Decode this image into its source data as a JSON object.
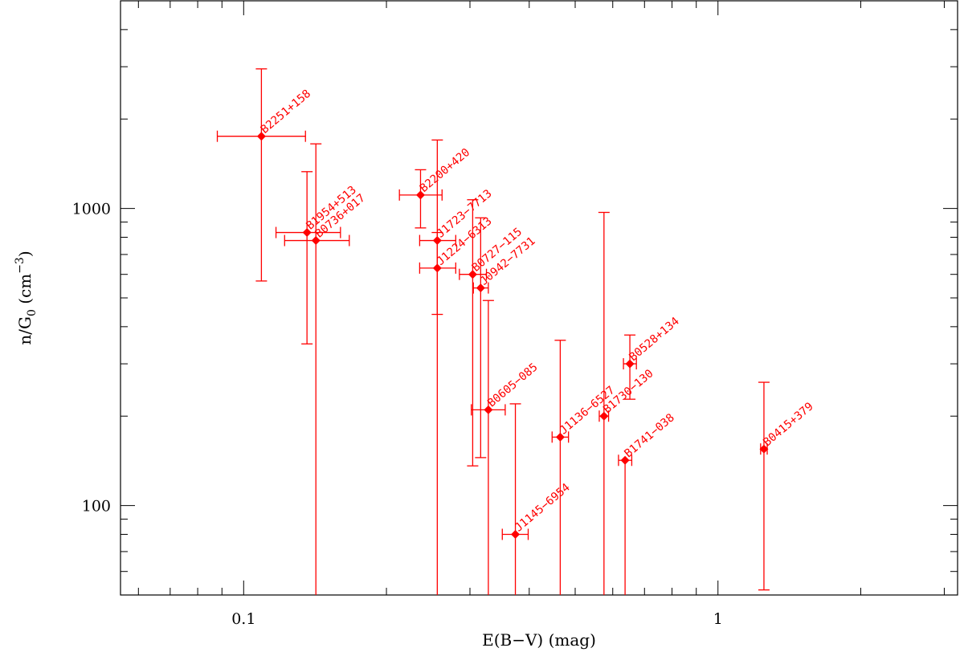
{
  "chart_data": {
    "type": "scatter",
    "xlabel": "E(B−V) (mag)",
    "ylabel_main": "n/G",
    "ylabel_sub": "0",
    "ylabel_unit_open": " (cm",
    "ylabel_unit_sup": "−3",
    "ylabel_unit_close": ")",
    "x_scale": "log",
    "y_scale": "log",
    "xlim": [
      0.055,
      3.2
    ],
    "ylim": [
      50,
      5000
    ],
    "x_tick_labels": [
      "0.1",
      "1"
    ],
    "y_tick_labels": [
      "100",
      "1000"
    ],
    "grid": false,
    "color": "#ff0000",
    "points": [
      {
        "label": "B2251+158",
        "x": 0.109,
        "y": 1750,
        "y_lo": 570,
        "y_hi": 2950,
        "x_lo": 0.088,
        "x_hi": 0.135
      },
      {
        "label": "B1954+513",
        "x": 0.136,
        "y": 830,
        "y_lo": 350,
        "y_hi": 1330,
        "x_lo": 0.117,
        "x_hi": 0.16
      },
      {
        "label": "B0736+017",
        "x": 0.142,
        "y": 780,
        "y_lo": 50,
        "y_hi": 1650,
        "x_lo": 0.122,
        "x_hi": 0.167
      },
      {
        "label": "B2200+420",
        "x": 0.236,
        "y": 1110,
        "y_lo": 860,
        "y_hi": 1350,
        "x_lo": 0.213,
        "x_hi": 0.262
      },
      {
        "label": "J1723−7713",
        "x": 0.256,
        "y": 780,
        "y_lo": 50,
        "y_hi": 1700,
        "x_lo": 0.235,
        "x_hi": 0.28
      },
      {
        "label": "J1224−6313",
        "x": 0.256,
        "y": 630,
        "y_lo": 440,
        "y_hi": 830,
        "x_lo": 0.235,
        "x_hi": 0.28
      },
      {
        "label": "B0727−115",
        "x": 0.304,
        "y": 600,
        "y_lo": 136,
        "y_hi": 1070,
        "x_lo": 0.285,
        "x_hi": 0.325
      },
      {
        "label": "J0942−7731",
        "x": 0.316,
        "y": 540,
        "y_lo": 145,
        "y_hi": 930,
        "x_lo": 0.305,
        "x_hi": 0.328
      },
      {
        "label": "B0605−085",
        "x": 0.328,
        "y": 210,
        "y_lo": 50,
        "y_hi": 490,
        "x_lo": 0.302,
        "x_hi": 0.356
      },
      {
        "label": "J1145−6954",
        "x": 0.374,
        "y": 80,
        "y_lo": 50,
        "y_hi": 220,
        "x_lo": 0.351,
        "x_hi": 0.398
      },
      {
        "label": "J1136−6527",
        "x": 0.465,
        "y": 170,
        "y_lo": 50,
        "y_hi": 360,
        "x_lo": 0.447,
        "x_hi": 0.484
      },
      {
        "label": "B1730−130",
        "x": 0.575,
        "y": 200,
        "y_lo": 50,
        "y_hi": 970,
        "x_lo": 0.562,
        "x_hi": 0.588
      },
      {
        "label": "B0528+134",
        "x": 0.652,
        "y": 300,
        "y_lo": 228,
        "y_hi": 375,
        "x_lo": 0.632,
        "x_hi": 0.673
      },
      {
        "label": "B1741−038",
        "x": 0.637,
        "y": 142,
        "y_lo": 50,
        "y_hi": 142,
        "x_lo": 0.617,
        "x_hi": 0.658
      },
      {
        "label": "B0415+379",
        "x": 1.25,
        "y": 155,
        "y_lo": 52,
        "y_hi": 260,
        "x_lo": 1.23,
        "x_hi": 1.27
      }
    ]
  }
}
